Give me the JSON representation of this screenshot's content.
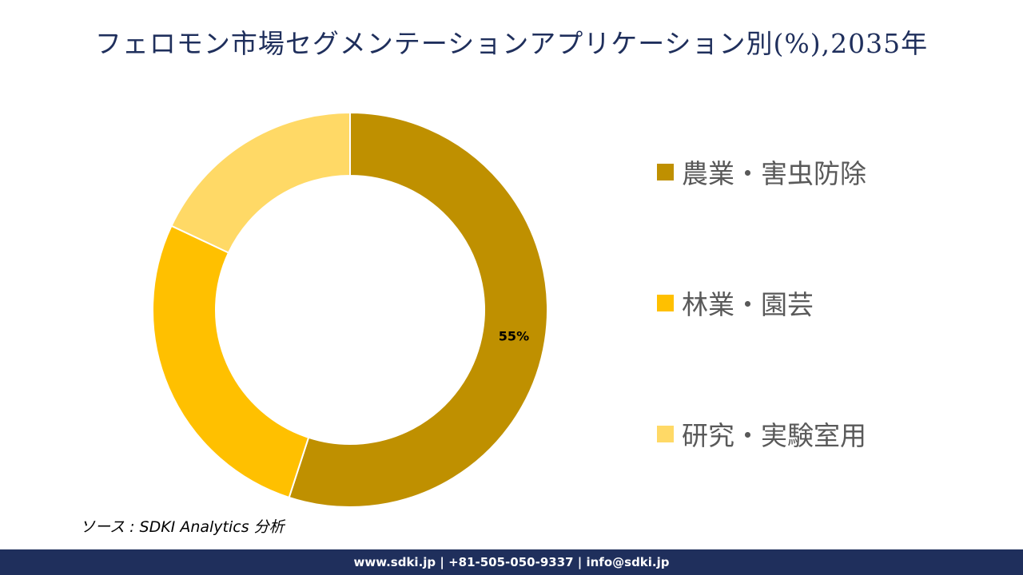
{
  "title": "フェロモン市場セグメンテーションアプリケーション別(%),2035年",
  "chart_data": {
    "type": "pie",
    "variant": "donut",
    "categories": [
      "農業・害虫防除",
      "林業・園芸",
      "研究・実験室用"
    ],
    "values": [
      55,
      27,
      18
    ],
    "colors": [
      "#bf9000",
      "#ffc000",
      "#ffd966"
    ],
    "data_labels": [
      "55%",
      "",
      ""
    ],
    "legend_position": "right"
  },
  "source": "ソース : SDKI Analytics 分析",
  "footer": "www.sdki.jp | +81-505-050-9337 | info@sdki.jp"
}
